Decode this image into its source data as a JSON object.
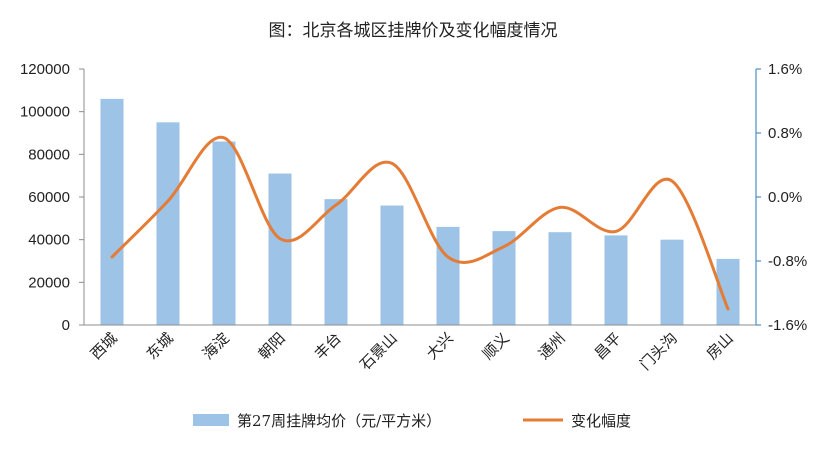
{
  "chart_data": {
    "type": "bar",
    "title": "图：北京各城区挂牌价及变化幅度情况",
    "categories": [
      "西城",
      "东城",
      "海淀",
      "朝阳",
      "丰台",
      "石景山",
      "大兴",
      "顺义",
      "通州",
      "昌平",
      "门头沟",
      "房山"
    ],
    "series": [
      {
        "name": "第27周挂牌均价（元/平方米）",
        "type": "bar",
        "axis": "left",
        "color": "#9dc3e6",
        "values": [
          106000,
          95000,
          86000,
          71000,
          59000,
          56000,
          46000,
          44000,
          43500,
          42000,
          40000,
          31000
        ]
      },
      {
        "name": "变化幅度",
        "type": "line",
        "axis": "right",
        "color": "#e47c36",
        "values": [
          -0.75,
          -0.05,
          0.74,
          -0.52,
          -0.1,
          0.42,
          -0.75,
          -0.62,
          -0.13,
          -0.43,
          0.2,
          -1.4
        ]
      }
    ],
    "left_axis": {
      "ylim": [
        0,
        120000
      ],
      "ticks": [
        0,
        20000,
        40000,
        60000,
        80000,
        100000,
        120000
      ]
    },
    "right_axis": {
      "ylim": [
        -1.6,
        1.6
      ],
      "ticks": [
        -1.6,
        -0.8,
        0.0,
        0.8,
        1.6
      ],
      "tick_labels": [
        "-1.6%",
        "-0.8%",
        "0.0%",
        "0.8%",
        "1.6%"
      ]
    },
    "grid": false,
    "legend_position": "bottom"
  }
}
